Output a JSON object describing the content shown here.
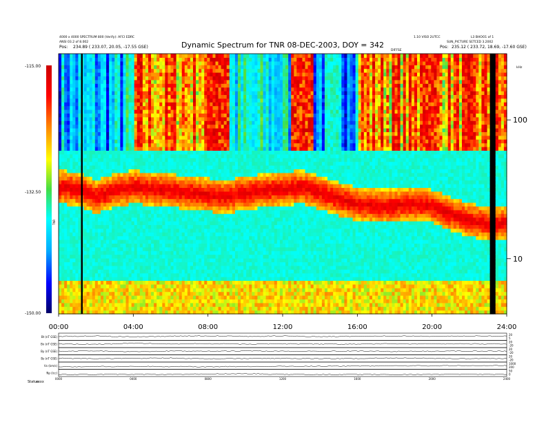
{
  "header": {
    "left_line1": "4000 x 4000 SPECTRUM 800 (Verify): AFCI EDRC",
    "left_line2": "ANSI 03.2 of 8.002",
    "left_pos_label": "Pos:",
    "left_pos_value": "234.89 ( 233.07, 20.05, -17.55 GSE)",
    "right_line1": "1.10 VISO 2UTCC",
    "right_line1b": "L3 BHOO1 of 1",
    "right_line2": "SUN_PICTURE SETCED 3.2002",
    "right_pos_label": "Pos:",
    "right_pos_value": "235.12 ( 233.72, 18.69, -17.60 GSE)",
    "mid_label": "DIFFSE"
  },
  "chart_data": [
    {
      "type": "heatmap",
      "title": "Dynamic Spectrum for TNR 08-DEC-2003, DOY = 342",
      "x_unit": "hours UT",
      "xlim": [
        0,
        24
      ],
      "x_tick_labels": [
        "00:00",
        "04:00",
        "08:00",
        "12:00",
        "16:00",
        "20:00",
        "24:00"
      ],
      "ylabel_right": "kHz",
      "y_scale": "log",
      "ylim": [
        4,
        300
      ],
      "y_tick_values": [
        10,
        100
      ],
      "colorbar": {
        "label": "TNR",
        "range": [
          -150.0,
          -115.0
        ],
        "tick_labels": [
          "-115.00",
          "-132.50",
          "-150.00"
        ],
        "colors": [
          "#000066",
          "#0000ff",
          "#00aaff",
          "#00ffff",
          "#44dd44",
          "#ffff00",
          "#ff8800",
          "#ff0000",
          "#cc0000"
        ]
      },
      "features": {
        "quiet_background_level_fraction": 0.4,
        "high_band_split_khz": 62,
        "dark_data_gaps_hours": [
          [
            1.2,
            1.25
          ],
          [
            23.15,
            23.35
          ]
        ],
        "bright_emission_intervals_hours": [
          [
            7.8,
            9.2
          ],
          [
            12.4,
            13.6
          ],
          [
            19.3,
            20.3
          ]
        ],
        "mid_band_intensity_track_khz": [
          [
            0.0,
            33
          ],
          [
            1.0,
            32
          ],
          [
            2.0,
            28
          ],
          [
            3.0,
            31
          ],
          [
            4.0,
            33
          ],
          [
            5.0,
            32
          ],
          [
            6.0,
            31
          ],
          [
            7.0,
            30
          ],
          [
            8.0,
            29
          ],
          [
            9.0,
            28
          ],
          [
            10.0,
            30
          ],
          [
            11.0,
            31
          ],
          [
            12.0,
            32
          ],
          [
            13.0,
            33
          ],
          [
            14.0,
            30
          ],
          [
            15.0,
            27
          ],
          [
            16.0,
            25
          ],
          [
            17.0,
            24
          ],
          [
            18.0,
            24
          ],
          [
            19.0,
            25
          ],
          [
            20.0,
            24
          ],
          [
            21.0,
            21
          ],
          [
            22.0,
            19
          ],
          [
            23.0,
            18
          ]
        ]
      }
    },
    {
      "type": "line",
      "title": "",
      "xlim": [
        0,
        24
      ],
      "x_tick_labels": [
        "0000",
        "0400",
        "0800",
        "1200",
        "1600",
        "2000",
        "2400"
      ],
      "series": [
        {
          "name": "Bt (nT GSE)",
          "right_axis": [
            "20",
            "5"
          ],
          "values": [
            0.55,
            0.6,
            0.5,
            0.58,
            0.62,
            0.55,
            0.6,
            0.52,
            0.57,
            0.6,
            0.55,
            0.58,
            0.6
          ]
        },
        {
          "name": "Bx (nT GSE)",
          "right_axis": [
            "20",
            "-20"
          ],
          "values": [
            0.5,
            0.45,
            0.6,
            0.5,
            0.55,
            0.48,
            0.52,
            0.5,
            0.47,
            0.55,
            0.5,
            0.52,
            0.5
          ]
        },
        {
          "name": "By (nT GSE)",
          "right_axis": [
            "20",
            "-20"
          ],
          "values": [
            0.5,
            0.55,
            0.45,
            0.52,
            0.5,
            0.55,
            0.48,
            0.5,
            0.53,
            0.47,
            0.5,
            0.52,
            0.5
          ]
        },
        {
          "name": "Bz (nT GSE)",
          "right_axis": [
            "20",
            "-20"
          ],
          "values": [
            0.52,
            0.48,
            0.5,
            0.55,
            0.45,
            0.5,
            0.52,
            0.48,
            0.5,
            0.55,
            0.5,
            0.47,
            0.5
          ]
        },
        {
          "name": "Vx (km/s)",
          "right_axis": [
            "1000",
            "200"
          ],
          "values": [
            0.35,
            0.38,
            0.4,
            0.37,
            0.36,
            0.38,
            0.4,
            0.42,
            0.45,
            0.5,
            0.48,
            0.5,
            0.52
          ]
        },
        {
          "name": "Np (/cc)",
          "right_axis": [
            "50",
            "0"
          ],
          "values": [
            0.3,
            0.28,
            0.32,
            0.3,
            0.35,
            0.4,
            0.3,
            0.28,
            0.3,
            0.27,
            0.3,
            0.32,
            0.3
          ]
        }
      ]
    }
  ],
  "footer": {
    "label": "Status",
    "value": "xxxx"
  }
}
